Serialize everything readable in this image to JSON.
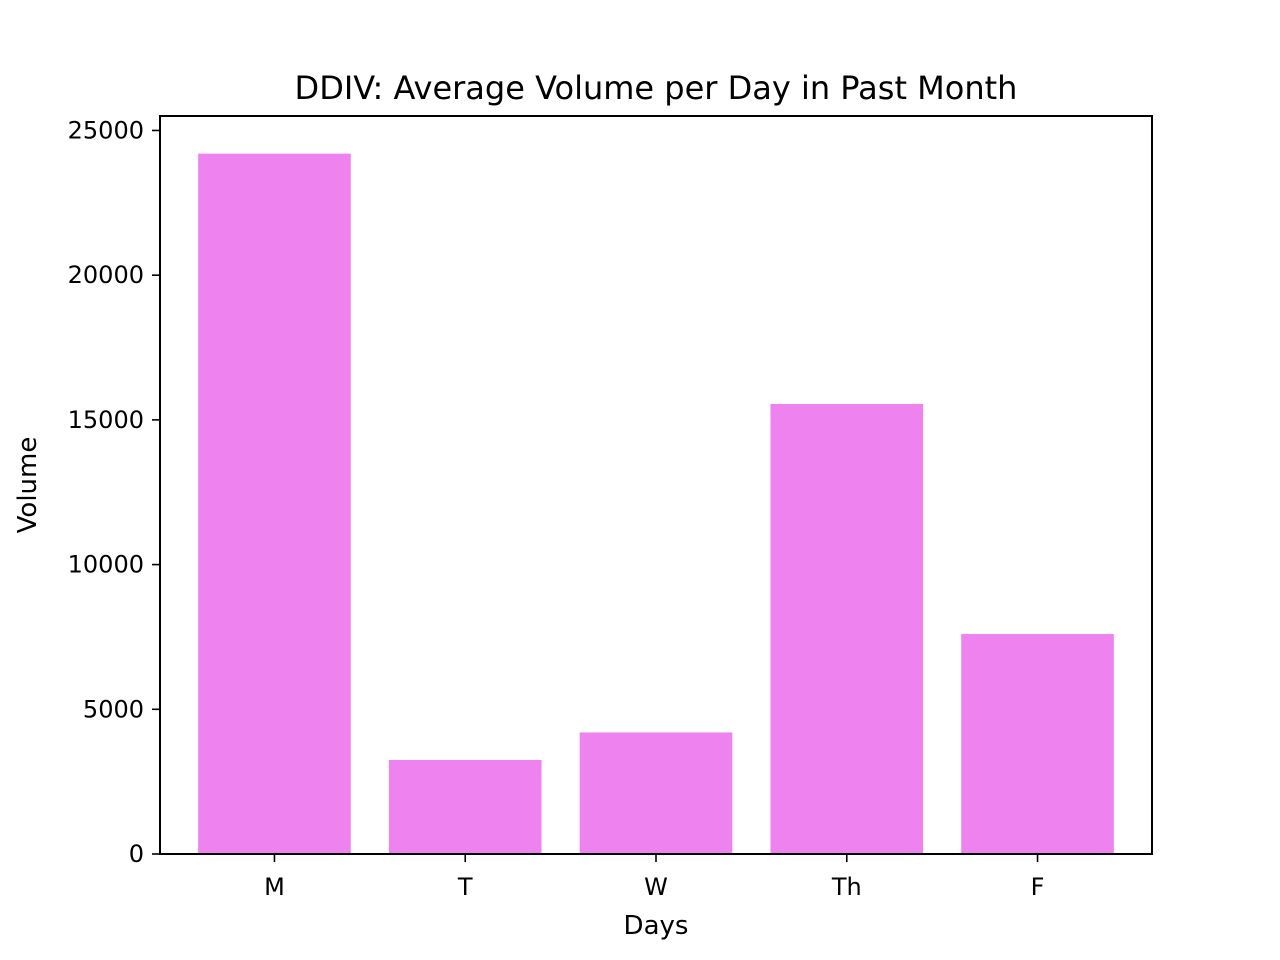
{
  "chart_data": {
    "type": "bar",
    "title": "DDIV: Average Volume per Day in Past Month",
    "xlabel": "Days",
    "ylabel": "Volume",
    "categories": [
      "M",
      "T",
      "W",
      "Th",
      "F"
    ],
    "values": [
      24200,
      3250,
      4200,
      15550,
      7600
    ],
    "ylim": [
      0,
      25500
    ],
    "yticks": [
      0,
      5000,
      10000,
      15000,
      20000,
      25000
    ],
    "bar_color": "#ee82ee",
    "grid": false,
    "legend": "none"
  }
}
